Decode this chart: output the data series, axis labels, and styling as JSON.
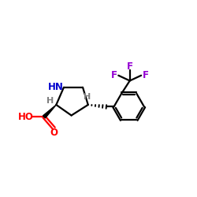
{
  "background_color": "#ffffff",
  "bond_color": "#000000",
  "n_color": "#0000cd",
  "o_color": "#ff0000",
  "f_color": "#9400d3",
  "h_color": "#7f7f7f",
  "figsize": [
    2.5,
    2.5
  ],
  "dpi": 100,
  "xlim": [
    0,
    10
  ],
  "ylim": [
    0,
    10
  ],
  "lw": 1.6
}
